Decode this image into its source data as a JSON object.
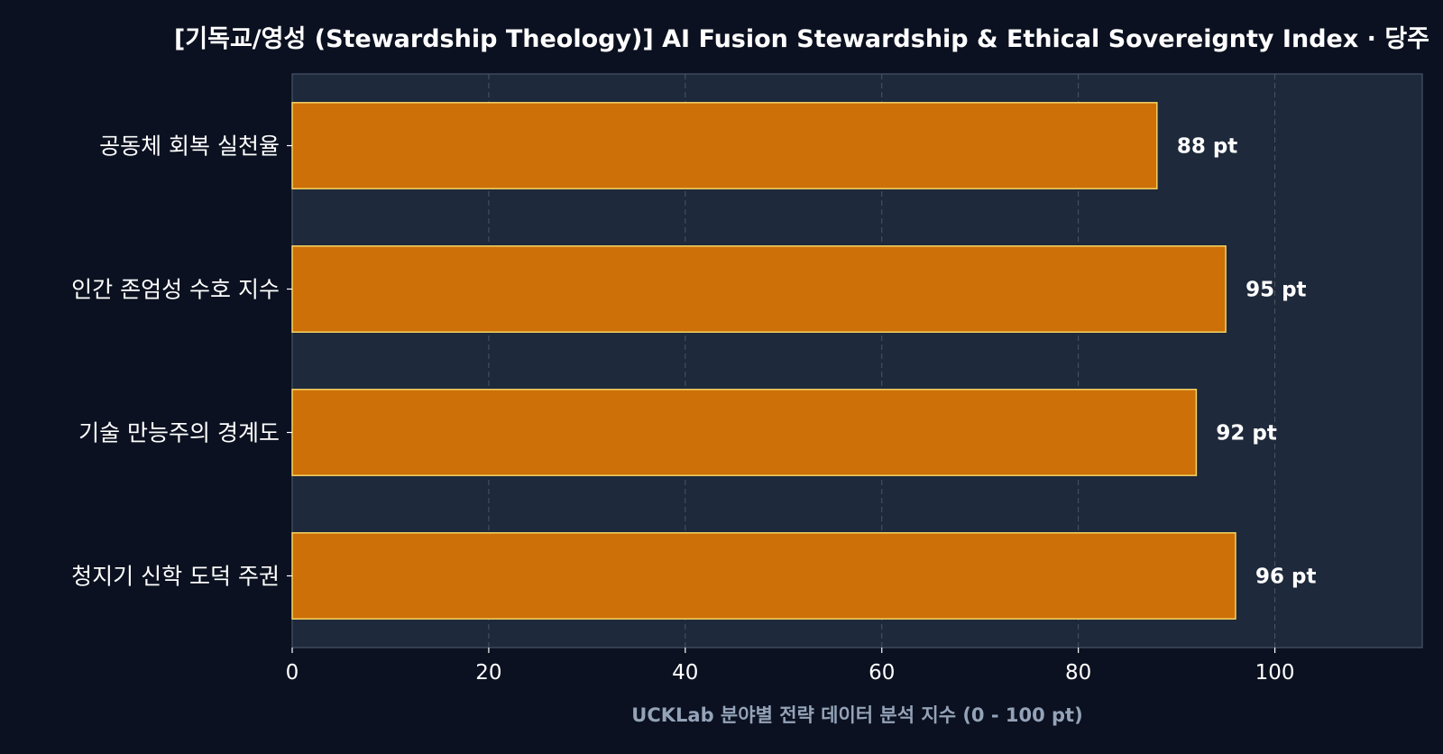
{
  "chart_data": {
    "type": "bar",
    "orientation": "horizontal",
    "title": "[기독교/영성 (Stewardship Theology)] AI Fusion Stewardship & Ethical Sovereignty Index · 당주",
    "xlabel": "UCKLab 분야별 전략 데이터 분석 지수 (0 - 100 pt)",
    "ylabel": "",
    "categories": [
      "공동체 회복 실천율",
      "인간 존엄성 수호 지수",
      "기술 만능주의 경계도",
      "청지기 신학 도덕 주권"
    ],
    "values": [
      88,
      95,
      92,
      96
    ],
    "value_labels": [
      "88 pt",
      "95 pt",
      "92 pt",
      "96 pt"
    ],
    "xlim": [
      0,
      115
    ],
    "xticks": [
      0,
      20,
      40,
      60,
      80,
      100
    ],
    "grid": "vertical dashed",
    "legend": "none",
    "colors": {
      "page_background": "#0b1120",
      "plot_background": "#1e293b",
      "bar_fill": "#cc7007",
      "bar_edge": "#f6d365",
      "grid": "#4b5563",
      "text": "#ffffff",
      "xlabel": "#94a3b8",
      "spine": "#475569"
    }
  }
}
